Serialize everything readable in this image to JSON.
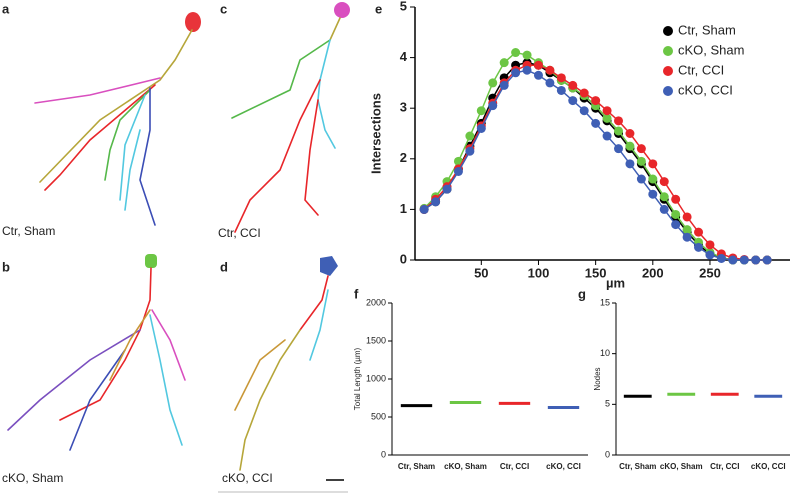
{
  "panels": [
    {
      "letter": "a",
      "label": "Ctr, Sham"
    },
    {
      "letter": "b",
      "label": "cKO, Sham"
    },
    {
      "letter": "c",
      "label": "Ctr, CCI"
    },
    {
      "letter": "d",
      "label": "cKO, CCI"
    }
  ],
  "chart_data": [
    {
      "type": "line",
      "letter": "e",
      "ylabel": "Intersections",
      "xlabel": "µm",
      "x": [
        0,
        10,
        20,
        30,
        40,
        50,
        60,
        70,
        80,
        90,
        100,
        110,
        120,
        130,
        140,
        150,
        160,
        170,
        180,
        190,
        200,
        210,
        220,
        230,
        240,
        250,
        260,
        270,
        280,
        290,
        300
      ],
      "xlim": [
        -8,
        320
      ],
      "xticks": [
        50,
        100,
        150,
        200,
        250
      ],
      "ylim": [
        0,
        5
      ],
      "yticks": [
        0,
        1,
        2,
        3,
        4,
        5
      ],
      "legend": "upper right",
      "series": [
        {
          "name": "Ctr, Sham",
          "color": "#000000",
          "values": [
            1.0,
            1.15,
            1.4,
            1.8,
            2.25,
            2.7,
            3.2,
            3.6,
            3.85,
            3.9,
            3.85,
            3.7,
            3.55,
            3.4,
            3.2,
            3.0,
            2.75,
            2.5,
            2.2,
            1.9,
            1.55,
            1.2,
            0.85,
            0.55,
            0.3,
            0.12,
            0.04,
            0,
            0,
            0,
            0
          ]
        },
        {
          "name": "cKO, Sham",
          "color": "#6cc644",
          "values": [
            1.02,
            1.25,
            1.55,
            1.95,
            2.45,
            2.95,
            3.5,
            3.9,
            4.1,
            4.05,
            3.9,
            3.75,
            3.55,
            3.4,
            3.25,
            3.05,
            2.8,
            2.55,
            2.25,
            1.95,
            1.6,
            1.25,
            0.9,
            0.6,
            0.35,
            0.15,
            0.05,
            0,
            0,
            0,
            0
          ]
        },
        {
          "name": "Ctr, CCI",
          "color": "#e8262a",
          "values": [
            1.0,
            1.2,
            1.45,
            1.8,
            2.2,
            2.65,
            3.1,
            3.5,
            3.75,
            3.85,
            3.85,
            3.75,
            3.6,
            3.45,
            3.3,
            3.15,
            2.95,
            2.75,
            2.5,
            2.2,
            1.9,
            1.55,
            1.2,
            0.85,
            0.55,
            0.3,
            0.12,
            0.04,
            0.01,
            0,
            0
          ]
        },
        {
          "name": "cKO, CCI",
          "color": "#3f5fb5",
          "values": [
            1.0,
            1.15,
            1.4,
            1.75,
            2.15,
            2.6,
            3.05,
            3.45,
            3.7,
            3.75,
            3.65,
            3.5,
            3.35,
            3.15,
            2.95,
            2.7,
            2.45,
            2.2,
            1.9,
            1.6,
            1.3,
            1.0,
            0.7,
            0.45,
            0.25,
            0.1,
            0.03,
            0,
            0,
            0,
            0
          ]
        }
      ]
    },
    {
      "type": "strip",
      "letter": "f",
      "ylabel": "Total Length (µm)",
      "categories": [
        "Ctr, Sham",
        "cKO, Sham",
        "Ctr, CCI",
        "cKO, CCI"
      ],
      "colors": [
        "#000000",
        "#6cc644",
        "#e8262a",
        "#3f5fb5"
      ],
      "values": [
        650,
        690,
        680,
        625
      ],
      "ylim": [
        0,
        2000
      ],
      "yticks": [
        0,
        500,
        1000,
        1500,
        2000
      ]
    },
    {
      "type": "strip",
      "letter": "g",
      "ylabel": "Nodes",
      "categories": [
        "Ctr, Sham",
        "cKO, Sham",
        "Ctr, CCI",
        "cKO, CCI"
      ],
      "colors": [
        "#000000",
        "#6cc644",
        "#e8262a",
        "#3f5fb5"
      ],
      "values": [
        5.8,
        6.0,
        6.0,
        5.8
      ],
      "ylim": [
        0,
        15
      ],
      "yticks": [
        0,
        5,
        10,
        15
      ]
    }
  ]
}
